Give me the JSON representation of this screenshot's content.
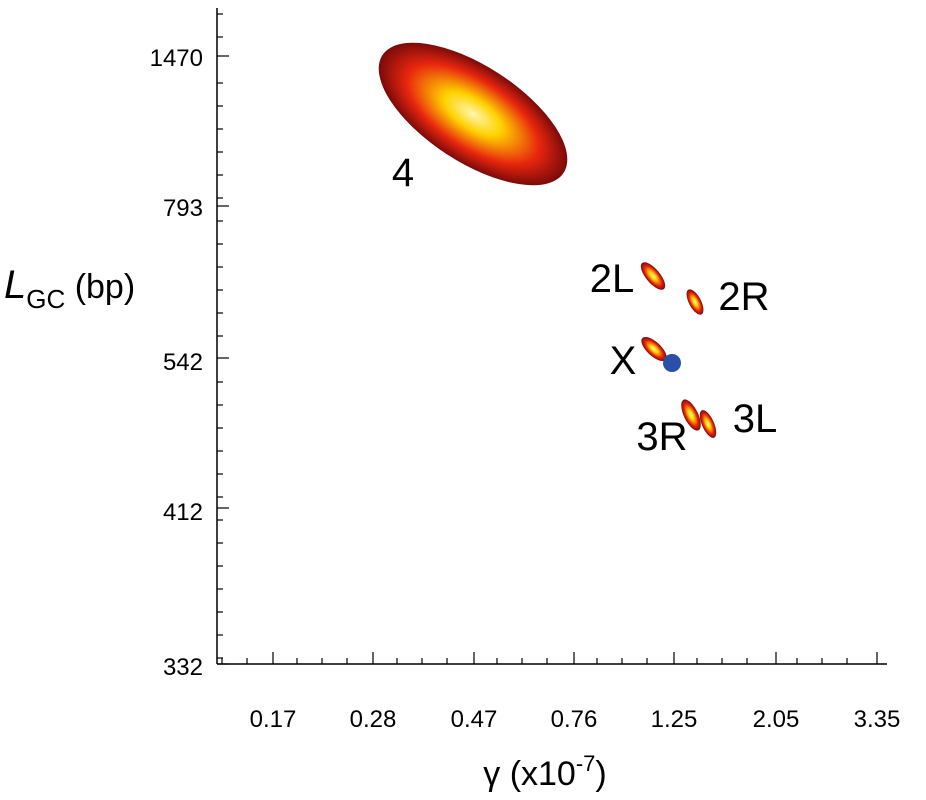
{
  "chart_data": {
    "type": "scatter",
    "title": "",
    "xaxis": {
      "label_symbol": "γ",
      "label_unit": " (x10",
      "label_exp": "-7",
      "label_close": ")",
      "scale": "log",
      "range": [
        0.11,
        4.1
      ],
      "ticks": [
        0.17,
        0.28,
        0.47,
        0.76,
        1.25,
        2.05,
        3.35
      ],
      "tick_labels": [
        "0.17",
        "0.28",
        "0.47",
        "0.76",
        "1.25",
        "2.05",
        "3.35"
      ]
    },
    "yaxis": {
      "label_symbol": "L",
      "label_sub": "GC",
      "label_unit": " (bp)",
      "scale": "log",
      "range": [
        332,
        1750
      ],
      "ticks": [
        332,
        412,
        542,
        793,
        1470
      ],
      "tick_labels": [
        "332",
        "412",
        "542",
        "793",
        "1470"
      ]
    },
    "regions": [
      {
        "name": "4",
        "x": 0.47,
        "y": 1250
      },
      {
        "name": "2L",
        "x": 1.13,
        "y": 680
      },
      {
        "name": "2R",
        "x": 1.37,
        "y": 630
      },
      {
        "name": "X",
        "x": 1.11,
        "y": 555
      },
      {
        "name": "3R",
        "x": 1.31,
        "y": 467
      },
      {
        "name": "3L",
        "x": 1.43,
        "y": 462
      }
    ],
    "point": {
      "x": 1.24,
      "y": 541,
      "color": "#2a4fa8"
    },
    "colors": {
      "outer": "#7a0a0a",
      "mid": "#e8260e",
      "inner": "#ffd200",
      "center": "#fff5b0"
    }
  }
}
